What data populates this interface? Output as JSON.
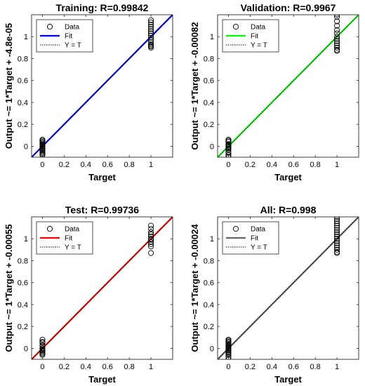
{
  "chart_data": [
    {
      "type": "scatter",
      "title": "Training: R=0.99842",
      "xlabel": "Target",
      "ylabel": "Output ~= 1*Target + -4.8e-05",
      "xlim": [
        -0.1,
        1.2
      ],
      "ylim": [
        -0.1,
        1.2
      ],
      "xticks": [
        "0",
        "0.2",
        "0.4",
        "0.6",
        "0.8",
        "1"
      ],
      "yticks": [
        "0",
        "0.2",
        "0.4",
        "0.6",
        "0.8",
        "1"
      ],
      "grid": false,
      "fit_color": "#0000ff",
      "fit": {
        "slope": 1,
        "intercept": -4.8e-05
      },
      "legend": {
        "position": "top-left",
        "entries": [
          "Data",
          "Fit",
          "Y = T"
        ]
      },
      "series": [
        {
          "name": "Data",
          "x": [
            0,
            0,
            0,
            0,
            0,
            0,
            0,
            0,
            0,
            0,
            0,
            0,
            0,
            0,
            0,
            1,
            1,
            1,
            1,
            1,
            1,
            1,
            1,
            1,
            1,
            1,
            1,
            1,
            1,
            1
          ],
          "y": [
            0.06,
            0.05,
            0.04,
            0.03,
            0.02,
            0.01,
            0,
            -0.01,
            -0.02,
            -0.03,
            -0.04,
            -0.05,
            -0.06,
            -0.07,
            -0.08,
            1.15,
            1.13,
            1.11,
            1.09,
            1.07,
            1.05,
            1.03,
            1.01,
            0.99,
            0.97,
            0.95,
            0.93,
            0.92,
            0.91,
            0.9
          ]
        }
      ]
    },
    {
      "type": "scatter",
      "title": "Validation: R=0.9967",
      "xlabel": "Target",
      "ylabel": "Output ~= 1*Target + -0.00082",
      "xlim": [
        -0.1,
        1.2
      ],
      "ylim": [
        -0.1,
        1.2
      ],
      "xticks": [
        "0",
        "0.2",
        "0.4",
        "0.6",
        "0.8",
        "1"
      ],
      "yticks": [
        "0",
        "0.2",
        "0.4",
        "0.6",
        "0.8",
        "1"
      ],
      "grid": false,
      "fit_color": "#00ff00",
      "fit": {
        "slope": 1,
        "intercept": -0.00082
      },
      "legend": {
        "position": "top-left",
        "entries": [
          "Data",
          "Fit",
          "Y = T"
        ]
      },
      "series": [
        {
          "name": "Data",
          "x": [
            0,
            0,
            0,
            0,
            0,
            0,
            0,
            0,
            0,
            0,
            0,
            0,
            0,
            1,
            1,
            1,
            1,
            1,
            1,
            1,
            1,
            1,
            1,
            1,
            1,
            1,
            1
          ],
          "y": [
            0.06,
            0.05,
            0.04,
            0.02,
            0.01,
            0,
            -0.01,
            -0.02,
            -0.03,
            -0.05,
            -0.06,
            -0.08,
            -0.1,
            1.2,
            1.18,
            1.14,
            1.1,
            1.06,
            1.03,
            1.0,
            0.98,
            0.96,
            0.94,
            0.92,
            0.9,
            0.88,
            0.87
          ]
        }
      ]
    },
    {
      "type": "scatter",
      "title": "Test: R=0.99736",
      "xlabel": "Target",
      "ylabel": "Output ~= 1*Target + -0.00055",
      "xlim": [
        -0.1,
        1.2
      ],
      "ylim": [
        -0.1,
        1.2
      ],
      "xticks": [
        "0",
        "0.2",
        "0.4",
        "0.6",
        "0.8",
        "1"
      ],
      "yticks": [
        "0",
        "0.2",
        "0.4",
        "0.6",
        "0.8",
        "1"
      ],
      "grid": false,
      "fit_color": "#ff0000",
      "fit": {
        "slope": 1,
        "intercept": -0.00055
      },
      "legend": {
        "position": "top-left",
        "entries": [
          "Data",
          "Fit",
          "Y = T"
        ]
      },
      "series": [
        {
          "name": "Data",
          "x": [
            0,
            0,
            0,
            0,
            0,
            0,
            0,
            0,
            0,
            0,
            0,
            0,
            1,
            1,
            1,
            1,
            1,
            1,
            1,
            1,
            1,
            1,
            1
          ],
          "y": [
            0.08,
            0.06,
            0.05,
            0.03,
            0.02,
            0,
            -0.01,
            -0.02,
            -0.03,
            -0.04,
            -0.05,
            -0.06,
            1.12,
            1.09,
            1.06,
            1.04,
            1.02,
            1.0,
            0.99,
            0.97,
            0.95,
            0.93,
            0.87
          ]
        }
      ]
    },
    {
      "type": "scatter",
      "title": "All: R=0.998",
      "xlabel": "Target",
      "ylabel": "Output ~= 1*Target + -0.00024",
      "xlim": [
        -0.1,
        1.2
      ],
      "ylim": [
        -0.1,
        1.2
      ],
      "xticks": [
        "0",
        "0.2",
        "0.4",
        "0.6",
        "0.8",
        "1"
      ],
      "yticks": [
        "0",
        "0.2",
        "0.4",
        "0.6",
        "0.8",
        "1"
      ],
      "grid": false,
      "fit_color": "#666666",
      "fit": {
        "slope": 1,
        "intercept": -0.00024
      },
      "legend": {
        "position": "top-left",
        "entries": [
          "Data",
          "Fit",
          "Y = T"
        ]
      },
      "series": [
        {
          "name": "Data",
          "x": [
            0,
            0,
            0,
            0,
            0,
            0,
            0,
            0,
            0,
            0,
            0,
            0,
            0,
            0,
            0,
            0,
            0,
            1,
            1,
            1,
            1,
            1,
            1,
            1,
            1,
            1,
            1,
            1,
            1,
            1,
            1,
            1,
            1,
            1,
            1
          ],
          "y": [
            0.08,
            0.07,
            0.06,
            0.05,
            0.04,
            0.03,
            0.02,
            0.01,
            0,
            -0.01,
            -0.02,
            -0.03,
            -0.04,
            -0.05,
            -0.06,
            -0.08,
            -0.1,
            1.2,
            1.18,
            1.16,
            1.14,
            1.12,
            1.1,
            1.08,
            1.06,
            1.04,
            1.02,
            1.0,
            0.98,
            0.96,
            0.94,
            0.92,
            0.9,
            0.88,
            0.87
          ]
        }
      ]
    }
  ]
}
